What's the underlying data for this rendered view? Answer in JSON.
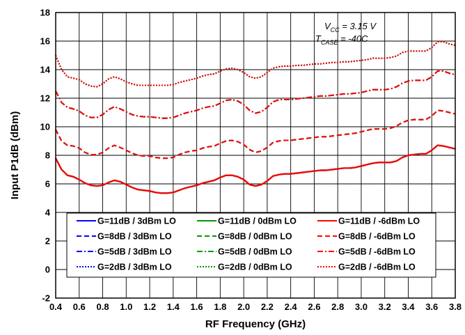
{
  "chart_data": {
    "type": "line",
    "title": "",
    "xlabel": "RF Frequency (GHz)",
    "ylabel": "Input P1dB (dBm)",
    "xlim": [
      0.4,
      3.8
    ],
    "ylim": [
      -2,
      18
    ],
    "xticks": [
      0.4,
      0.6,
      0.8,
      1.0,
      1.2,
      1.4,
      1.6,
      1.8,
      2.0,
      2.2,
      2.4,
      2.6,
      2.8,
      3.0,
      3.2,
      3.4,
      3.6,
      3.8
    ],
    "yticks": [
      -2,
      0,
      2,
      4,
      6,
      8,
      10,
      12,
      14,
      16,
      18
    ],
    "xtick_labels": [
      "0.4",
      "0.6",
      "0.8",
      "1.0",
      "1.2",
      "1.4",
      "1.6",
      "1.8",
      "2.0",
      "2.2",
      "2.4",
      "2.6",
      "2.8",
      "3.0",
      "3.2",
      "3.4",
      "3.6",
      "3.8"
    ],
    "ytick_labels": [
      "-2",
      "0",
      "2",
      "4",
      "6",
      "8",
      "10",
      "12",
      "14",
      "16",
      "18"
    ],
    "grid": true,
    "legend_position": "bottom-center",
    "annotation": {
      "line1_main": "V",
      "line1_sub": "CC",
      "line1_rest": " = 3.15 V",
      "line2_main": "T",
      "line2_sub": "CASE",
      "line2_rest": " = -40C"
    },
    "x": [
      0.4,
      0.45,
      0.5,
      0.55,
      0.6,
      0.65,
      0.7,
      0.75,
      0.8,
      0.85,
      0.9,
      0.95,
      1.0,
      1.05,
      1.1,
      1.15,
      1.2,
      1.25,
      1.3,
      1.35,
      1.4,
      1.45,
      1.5,
      1.55,
      1.6,
      1.65,
      1.7,
      1.75,
      1.8,
      1.85,
      1.9,
      1.95,
      2.0,
      2.05,
      2.1,
      2.15,
      2.2,
      2.25,
      2.3,
      2.35,
      2.4,
      2.45,
      2.5,
      2.55,
      2.6,
      2.65,
      2.7,
      2.75,
      2.8,
      2.85,
      2.9,
      2.95,
      3.0,
      3.05,
      3.1,
      3.15,
      3.2,
      3.25,
      3.3,
      3.35,
      3.4,
      3.45,
      3.5,
      3.55,
      3.6,
      3.65,
      3.7,
      3.75,
      3.8
    ],
    "series": [
      {
        "name": "G=11dB / 3dBm LO",
        "color": "#0000ff",
        "dash": "solid",
        "values": [
          7.8,
          7.0,
          6.6,
          6.5,
          6.3,
          6.05,
          5.9,
          5.85,
          5.9,
          6.1,
          6.25,
          6.15,
          5.95,
          5.75,
          5.6,
          5.55,
          5.5,
          5.4,
          5.35,
          5.35,
          5.4,
          5.55,
          5.7,
          5.8,
          5.9,
          6.05,
          6.15,
          6.25,
          6.45,
          6.6,
          6.6,
          6.5,
          6.3,
          5.95,
          5.85,
          5.95,
          6.2,
          6.55,
          6.65,
          6.7,
          6.7,
          6.75,
          6.8,
          6.85,
          6.9,
          6.95,
          6.95,
          7.0,
          7.05,
          7.1,
          7.1,
          7.15,
          7.25,
          7.35,
          7.45,
          7.5,
          7.5,
          7.5,
          7.6,
          7.85,
          8.0,
          8.05,
          8.1,
          8.1,
          8.35,
          8.7,
          8.65,
          8.55,
          8.45
        ]
      },
      {
        "name": "G=11dB / 0dBm LO",
        "color": "#009900",
        "dash": "solid",
        "values": [
          7.8,
          7.0,
          6.6,
          6.5,
          6.3,
          6.05,
          5.9,
          5.85,
          5.9,
          6.1,
          6.25,
          6.15,
          5.95,
          5.75,
          5.6,
          5.55,
          5.5,
          5.4,
          5.35,
          5.35,
          5.4,
          5.55,
          5.7,
          5.8,
          5.9,
          6.05,
          6.15,
          6.25,
          6.45,
          6.6,
          6.6,
          6.5,
          6.3,
          5.95,
          5.85,
          5.95,
          6.2,
          6.55,
          6.65,
          6.7,
          6.7,
          6.75,
          6.8,
          6.85,
          6.9,
          6.95,
          6.95,
          7.0,
          7.05,
          7.1,
          7.1,
          7.15,
          7.25,
          7.35,
          7.45,
          7.5,
          7.5,
          7.5,
          7.6,
          7.85,
          8.0,
          8.05,
          8.1,
          8.1,
          8.35,
          8.7,
          8.65,
          8.55,
          8.45
        ]
      },
      {
        "name": "G=11dB / -6dBm LO",
        "color": "#ff0000",
        "dash": "solid",
        "values": [
          7.8,
          7.0,
          6.6,
          6.5,
          6.3,
          6.05,
          5.9,
          5.85,
          5.9,
          6.1,
          6.25,
          6.15,
          5.95,
          5.75,
          5.6,
          5.55,
          5.5,
          5.4,
          5.35,
          5.35,
          5.4,
          5.55,
          5.7,
          5.8,
          5.9,
          6.05,
          6.15,
          6.25,
          6.45,
          6.6,
          6.6,
          6.5,
          6.3,
          5.95,
          5.85,
          5.95,
          6.2,
          6.55,
          6.65,
          6.7,
          6.7,
          6.75,
          6.8,
          6.85,
          6.9,
          6.95,
          6.95,
          7.0,
          7.05,
          7.1,
          7.1,
          7.15,
          7.25,
          7.35,
          7.45,
          7.5,
          7.5,
          7.5,
          7.6,
          7.85,
          8.0,
          8.05,
          8.1,
          8.1,
          8.35,
          8.7,
          8.65,
          8.55,
          8.45
        ]
      },
      {
        "name": "G=8dB / 3dBm LO",
        "color": "#0000ff",
        "dash": "dash",
        "values": [
          9.8,
          9.0,
          8.7,
          8.65,
          8.5,
          8.2,
          8.05,
          8.05,
          8.2,
          8.5,
          8.7,
          8.55,
          8.35,
          8.15,
          8.0,
          7.95,
          7.95,
          7.85,
          7.8,
          7.8,
          7.85,
          8.05,
          8.2,
          8.3,
          8.35,
          8.5,
          8.6,
          8.65,
          8.85,
          9.0,
          9.05,
          8.95,
          8.75,
          8.4,
          8.2,
          8.3,
          8.55,
          8.9,
          9.0,
          9.05,
          9.05,
          9.1,
          9.15,
          9.2,
          9.25,
          9.3,
          9.3,
          9.35,
          9.4,
          9.45,
          9.5,
          9.55,
          9.65,
          9.75,
          9.85,
          9.85,
          9.85,
          9.9,
          10.05,
          10.3,
          10.45,
          10.5,
          10.5,
          10.5,
          10.75,
          11.15,
          11.1,
          11.0,
          10.9
        ]
      },
      {
        "name": "G=8dB / 0dBm LO",
        "color": "#009900",
        "dash": "dash",
        "values": [
          9.8,
          9.0,
          8.7,
          8.65,
          8.5,
          8.2,
          8.05,
          8.05,
          8.2,
          8.5,
          8.7,
          8.55,
          8.35,
          8.15,
          8.0,
          7.95,
          7.95,
          7.85,
          7.8,
          7.8,
          7.85,
          8.05,
          8.2,
          8.3,
          8.35,
          8.5,
          8.6,
          8.65,
          8.85,
          9.0,
          9.05,
          8.95,
          8.75,
          8.4,
          8.2,
          8.3,
          8.55,
          8.9,
          9.0,
          9.05,
          9.05,
          9.1,
          9.15,
          9.2,
          9.25,
          9.3,
          9.3,
          9.35,
          9.4,
          9.45,
          9.5,
          9.55,
          9.65,
          9.75,
          9.85,
          9.85,
          9.85,
          9.9,
          10.05,
          10.3,
          10.45,
          10.5,
          10.5,
          10.5,
          10.75,
          11.15,
          11.1,
          11.0,
          10.9
        ]
      },
      {
        "name": "G=8dB / -6dBm LO",
        "color": "#ff0000",
        "dash": "dash",
        "values": [
          9.8,
          9.0,
          8.7,
          8.65,
          8.5,
          8.2,
          8.05,
          8.05,
          8.2,
          8.5,
          8.7,
          8.55,
          8.35,
          8.15,
          8.0,
          7.95,
          7.95,
          7.85,
          7.8,
          7.8,
          7.85,
          8.05,
          8.2,
          8.3,
          8.35,
          8.5,
          8.6,
          8.65,
          8.85,
          9.0,
          9.05,
          8.95,
          8.75,
          8.4,
          8.2,
          8.3,
          8.55,
          8.9,
          9.0,
          9.05,
          9.05,
          9.1,
          9.15,
          9.2,
          9.25,
          9.3,
          9.3,
          9.35,
          9.4,
          9.45,
          9.5,
          9.55,
          9.65,
          9.75,
          9.85,
          9.85,
          9.85,
          9.9,
          10.05,
          10.3,
          10.45,
          10.5,
          10.5,
          10.5,
          10.75,
          11.15,
          11.1,
          11.0,
          10.9
        ]
      },
      {
        "name": "G=5dB / 3dBm LO",
        "color": "#0000ff",
        "dash": "dashdot",
        "values": [
          12.5,
          11.7,
          11.35,
          11.25,
          11.1,
          10.8,
          10.65,
          10.65,
          10.85,
          11.2,
          11.4,
          11.25,
          11.05,
          10.85,
          10.75,
          10.7,
          10.7,
          10.65,
          10.6,
          10.6,
          10.65,
          10.8,
          10.95,
          11.05,
          11.15,
          11.3,
          11.4,
          11.45,
          11.65,
          11.85,
          11.9,
          11.8,
          11.55,
          11.15,
          10.95,
          11.05,
          11.35,
          11.75,
          11.9,
          11.9,
          11.9,
          11.95,
          12.0,
          12.05,
          12.1,
          12.15,
          12.15,
          12.2,
          12.25,
          12.3,
          12.3,
          12.35,
          12.4,
          12.5,
          12.6,
          12.6,
          12.6,
          12.65,
          12.8,
          13.05,
          13.2,
          13.25,
          13.25,
          13.25,
          13.5,
          13.9,
          13.9,
          13.75,
          13.65
        ]
      },
      {
        "name": "G=5dB / 0dBm LO",
        "color": "#009900",
        "dash": "dashdot",
        "values": [
          12.5,
          11.7,
          11.35,
          11.25,
          11.1,
          10.8,
          10.65,
          10.65,
          10.85,
          11.2,
          11.4,
          11.25,
          11.05,
          10.85,
          10.75,
          10.7,
          10.7,
          10.65,
          10.6,
          10.6,
          10.65,
          10.8,
          10.95,
          11.05,
          11.15,
          11.3,
          11.4,
          11.45,
          11.65,
          11.85,
          11.9,
          11.8,
          11.55,
          11.15,
          10.95,
          11.05,
          11.35,
          11.75,
          11.9,
          11.9,
          11.9,
          11.95,
          12.0,
          12.05,
          12.1,
          12.15,
          12.15,
          12.2,
          12.25,
          12.3,
          12.3,
          12.35,
          12.4,
          12.5,
          12.6,
          12.6,
          12.6,
          12.65,
          12.8,
          13.05,
          13.2,
          13.25,
          13.25,
          13.25,
          13.5,
          13.9,
          13.9,
          13.75,
          13.65
        ]
      },
      {
        "name": "G=5dB / -6dBm LO",
        "color": "#ff0000",
        "dash": "dashdot",
        "values": [
          12.5,
          11.7,
          11.35,
          11.25,
          11.1,
          10.8,
          10.65,
          10.65,
          10.85,
          11.2,
          11.4,
          11.25,
          11.05,
          10.85,
          10.75,
          10.7,
          10.7,
          10.65,
          10.6,
          10.6,
          10.65,
          10.8,
          10.95,
          11.05,
          11.15,
          11.3,
          11.4,
          11.45,
          11.65,
          11.85,
          11.9,
          11.8,
          11.55,
          11.15,
          10.95,
          11.05,
          11.35,
          11.75,
          11.9,
          11.9,
          11.9,
          11.95,
          12.0,
          12.05,
          12.1,
          12.15,
          12.15,
          12.2,
          12.25,
          12.3,
          12.3,
          12.35,
          12.4,
          12.5,
          12.6,
          12.6,
          12.6,
          12.65,
          12.8,
          13.05,
          13.2,
          13.25,
          13.25,
          13.25,
          13.5,
          13.9,
          13.9,
          13.75,
          13.65
        ]
      },
      {
        "name": "G=2dB / 3dBm LO",
        "color": "#0000ff",
        "dash": "dot",
        "values": [
          15.0,
          14.0,
          13.5,
          13.4,
          13.3,
          13.0,
          12.85,
          12.8,
          13.0,
          13.35,
          13.5,
          13.35,
          13.15,
          13.0,
          12.9,
          12.9,
          12.9,
          12.9,
          12.9,
          12.9,
          12.95,
          13.1,
          13.2,
          13.3,
          13.4,
          13.55,
          13.65,
          13.7,
          13.9,
          14.05,
          14.1,
          14.0,
          13.8,
          13.5,
          13.4,
          13.5,
          13.8,
          14.1,
          14.2,
          14.25,
          14.25,
          14.3,
          14.3,
          14.35,
          14.4,
          14.4,
          14.45,
          14.5,
          14.5,
          14.55,
          14.55,
          14.6,
          14.65,
          14.7,
          14.8,
          14.8,
          14.8,
          14.85,
          14.95,
          15.2,
          15.3,
          15.3,
          15.3,
          15.3,
          15.55,
          15.95,
          15.95,
          15.8,
          15.7
        ]
      },
      {
        "name": "G=2dB / 0dBm LO",
        "color": "#009900",
        "dash": "dot",
        "values": [
          15.0,
          14.0,
          13.5,
          13.4,
          13.3,
          13.0,
          12.85,
          12.8,
          13.0,
          13.35,
          13.5,
          13.35,
          13.15,
          13.0,
          12.9,
          12.9,
          12.9,
          12.9,
          12.9,
          12.9,
          12.95,
          13.1,
          13.2,
          13.3,
          13.4,
          13.55,
          13.65,
          13.7,
          13.9,
          14.05,
          14.1,
          14.0,
          13.8,
          13.5,
          13.4,
          13.5,
          13.8,
          14.1,
          14.2,
          14.25,
          14.25,
          14.3,
          14.3,
          14.35,
          14.4,
          14.4,
          14.45,
          14.5,
          14.5,
          14.55,
          14.55,
          14.6,
          14.65,
          14.7,
          14.8,
          14.8,
          14.8,
          14.85,
          14.95,
          15.2,
          15.3,
          15.3,
          15.3,
          15.3,
          15.55,
          15.95,
          15.95,
          15.8,
          15.7
        ]
      },
      {
        "name": "G=2dB / -6dBm LO",
        "color": "#ff0000",
        "dash": "dot",
        "values": [
          15.0,
          14.0,
          13.5,
          13.4,
          13.3,
          13.0,
          12.85,
          12.8,
          13.0,
          13.35,
          13.5,
          13.35,
          13.15,
          13.0,
          12.9,
          12.9,
          12.9,
          12.9,
          12.9,
          12.9,
          12.95,
          13.1,
          13.2,
          13.3,
          13.4,
          13.55,
          13.65,
          13.7,
          13.9,
          14.05,
          14.1,
          14.0,
          13.8,
          13.5,
          13.4,
          13.5,
          13.8,
          14.1,
          14.2,
          14.25,
          14.25,
          14.3,
          14.3,
          14.35,
          14.4,
          14.4,
          14.45,
          14.5,
          14.5,
          14.55,
          14.55,
          14.6,
          14.65,
          14.7,
          14.8,
          14.8,
          14.8,
          14.85,
          14.95,
          15.2,
          15.3,
          15.3,
          15.3,
          15.3,
          15.55,
          15.95,
          15.95,
          15.8,
          15.7
        ]
      }
    ]
  }
}
